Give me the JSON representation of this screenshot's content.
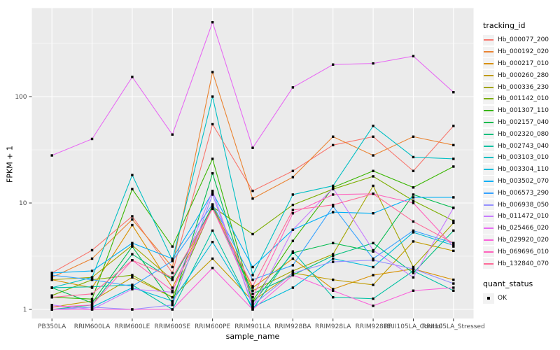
{
  "chart_data": {
    "type": "line",
    "xlabel": "sample_name",
    "ylabel": "FPKM + 1",
    "y_scale": "log10",
    "y_ticks": [
      1,
      10,
      100
    ],
    "y_minor_ticks": [
      3.162,
      31.62,
      316.2
    ],
    "ylim": [
      0.85,
      650
    ],
    "legend_position": "right",
    "grid": true,
    "categories": [
      "PB350LA",
      "RRIM600LA",
      "RRIM600LE",
      "RRIM600SE",
      "RRIM600PE",
      "RRIM901LA",
      "RRIM928BA",
      "RRIM928LA",
      "RRIM928LE",
      "RRII105LA_Control",
      "RRII105LA_Stressed"
    ],
    "series": [
      {
        "name": "Hb_000077_200",
        "color": "#F8766D",
        "values": [
          2.2,
          3.6,
          7.5,
          2.2,
          55,
          13,
          20,
          35,
          42,
          20,
          53
        ]
      },
      {
        "name": "Hb_000192_020",
        "color": "#EA8331",
        "values": [
          2.0,
          3.0,
          7.0,
          2.5,
          170,
          11,
          17.5,
          42,
          28,
          42,
          35
        ]
      },
      {
        "name": "Hb_000217_010",
        "color": "#D89000",
        "values": [
          1.9,
          1.6,
          6.2,
          1.6,
          9.5,
          1.6,
          3.0,
          1.55,
          2.1,
          2.4,
          1.9
        ]
      },
      {
        "name": "Hb_000260_280",
        "color": "#C09B00",
        "values": [
          1.05,
          1.2,
          2.0,
          1.3,
          3.0,
          1.2,
          2.2,
          1.9,
          1.7,
          4.35,
          3.55
        ]
      },
      {
        "name": "Hb_000336_230",
        "color": "#A3A500",
        "values": [
          1.9,
          2.0,
          4.0,
          1.9,
          9.0,
          1.5,
          2.3,
          3.3,
          14.5,
          2.5,
          6.5
        ]
      },
      {
        "name": "Hb_001142_010",
        "color": "#7CAE00",
        "values": [
          1.35,
          1.9,
          2.1,
          1.3,
          9.2,
          5.1,
          9.6,
          13.5,
          17.8,
          10.5,
          6.8
        ]
      },
      {
        "name": "Hb_001307_110",
        "color": "#39B600",
        "values": [
          1.3,
          1.25,
          13.5,
          3.9,
          26,
          1.2,
          4.4,
          14,
          20,
          14,
          22
        ]
      },
      {
        "name": "Hb_002157_040",
        "color": "#00BB4E",
        "values": [
          1.6,
          1.15,
          3.9,
          1.15,
          19,
          1.15,
          3.4,
          4.2,
          3.5,
          12,
          9.0
        ]
      },
      {
        "name": "Hb_002320_080",
        "color": "#00BF7D",
        "values": [
          1.0,
          1.1,
          3.3,
          1.9,
          9.3,
          1.4,
          2.1,
          3.2,
          4.2,
          2.2,
          5.5
        ]
      },
      {
        "name": "Hb_002743_040",
        "color": "#00C1A3",
        "values": [
          1.6,
          1.63,
          1.7,
          1.0,
          5.5,
          1.0,
          3.5,
          1.3,
          1.26,
          2.3,
          1.5
        ]
      },
      {
        "name": "Hb_003103_010",
        "color": "#00BFC4",
        "values": [
          1.6,
          2.0,
          18.3,
          2.9,
          100,
          2.1,
          12,
          14.5,
          53,
          27,
          26
        ]
      },
      {
        "name": "Hb_003304_110",
        "color": "#00BBDA",
        "values": [
          1.0,
          1.05,
          1.6,
          1.2,
          4.3,
          1.05,
          1.6,
          3.0,
          2.5,
          5.3,
          4.0
        ]
      },
      {
        "name": "Hb_003502_070",
        "color": "#00B0F6",
        "values": [
          2.2,
          2.3,
          4.2,
          3.0,
          12.5,
          2.5,
          5.6,
          8.2,
          8.0,
          11.3,
          11.3
        ]
      },
      {
        "name": "Hb_006573_290",
        "color": "#35A2FF",
        "values": [
          2.1,
          1.9,
          1.65,
          2.85,
          9.7,
          1.9,
          2.6,
          9.3,
          3.0,
          5.5,
          4.2
        ]
      },
      {
        "name": "Hb_006938_050",
        "color": "#9590FF",
        "values": [
          1.0,
          1.05,
          1.0,
          1.1,
          12.0,
          1.1,
          2.2,
          2.8,
          2.9,
          2.4,
          1.75
        ]
      },
      {
        "name": "Hb_011472_010",
        "color": "#C77CFF",
        "values": [
          1.1,
          1.0,
          1.55,
          1.45,
          13.0,
          1.05,
          5.6,
          13.8,
          3.6,
          2.0,
          9.0
        ]
      },
      {
        "name": "Hb_025466_020",
        "color": "#E76BF3",
        "values": [
          28,
          40,
          153,
          44,
          500,
          33,
          122,
          200,
          205,
          240,
          110
        ]
      },
      {
        "name": "Hb_029920_020",
        "color": "#FA62DB",
        "values": [
          1.0,
          1.0,
          1.0,
          1.0,
          2.45,
          1.0,
          2.1,
          1.5,
          1.08,
          1.5,
          1.6
        ]
      },
      {
        "name": "Hb_069696_010",
        "color": "#FF62BC",
        "values": [
          1.05,
          1.1,
          2.9,
          1.5,
          9.0,
          1.3,
          8.0,
          12,
          12.2,
          10,
          3.9
        ]
      },
      {
        "name": "Hb_132840_070",
        "color": "#FF6A98",
        "values": [
          1.3,
          1.4,
          2.9,
          2.0,
          8.8,
          1.65,
          8.6,
          9.6,
          12.2,
          6.7,
          4.2
        ]
      }
    ],
    "marker": {
      "shape": "square",
      "color": "#000000"
    }
  },
  "legend": {
    "color_title": "tracking_id",
    "shape_title": "quant_status",
    "shape_items": [
      {
        "label": "OK"
      }
    ]
  },
  "theme": {
    "panel_bg": "#EBEBEB",
    "grid_major": "#FFFFFF",
    "grid_minor": "#F7F7F7",
    "tick_color": "#333333",
    "tick_label_color": "#4d4d4d",
    "background": "#FFFFFF",
    "legend_key_bg": "#F2F2F2"
  }
}
